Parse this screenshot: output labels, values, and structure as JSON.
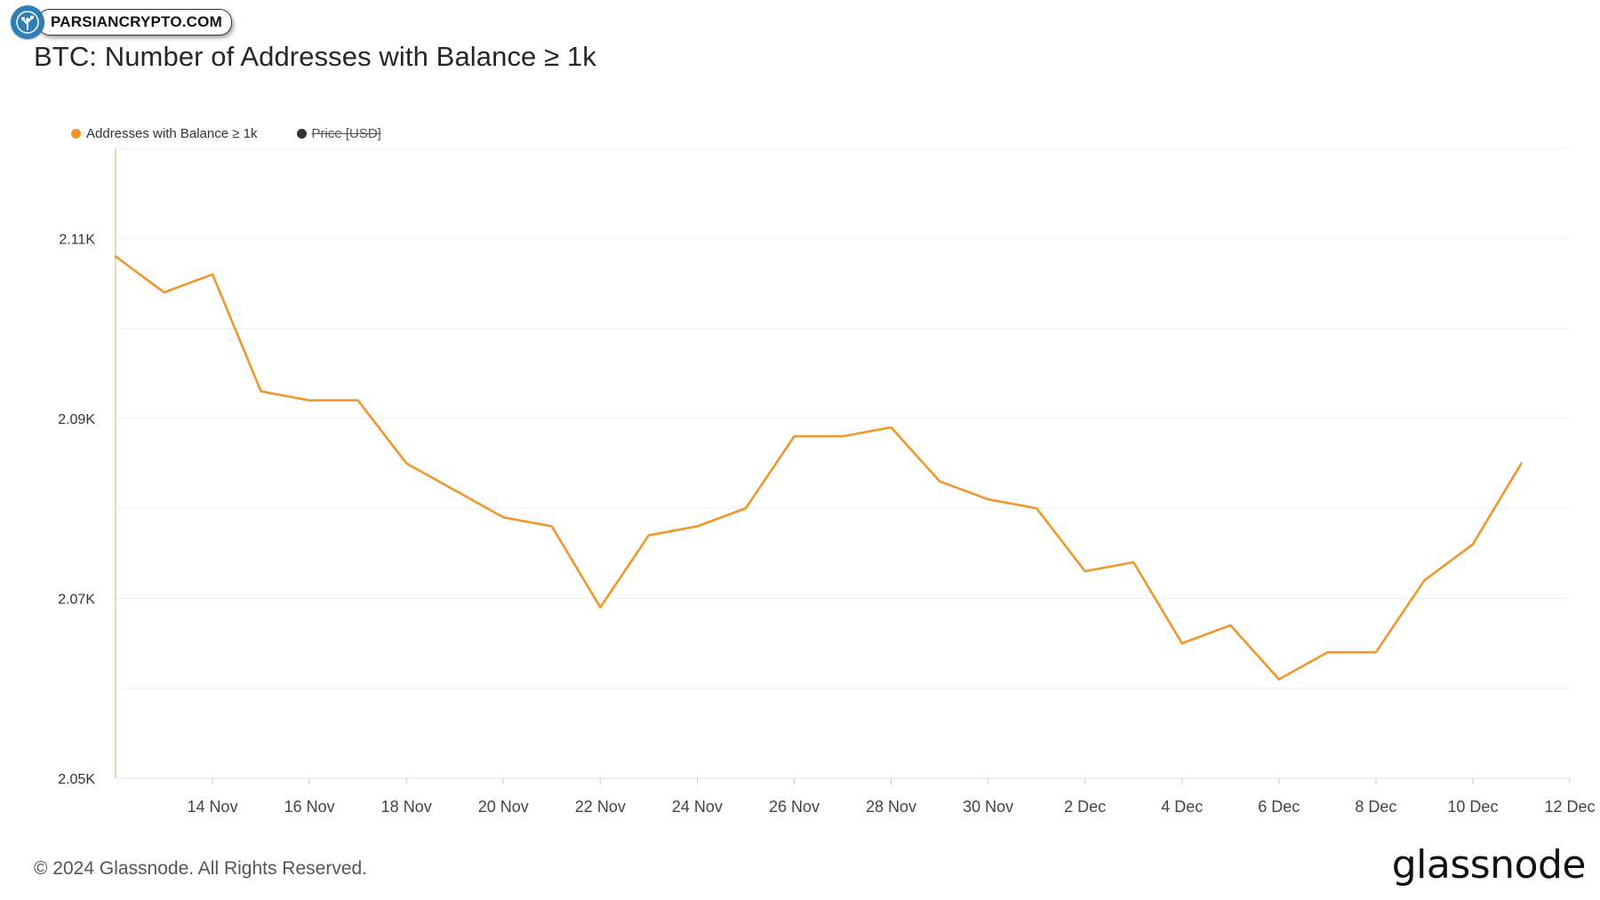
{
  "watermark": {
    "text": "PARSIANCRYPTO.COM"
  },
  "footer": {
    "copyright": "© 2024 Glassnode. All Rights Reserved.",
    "brand": "glassnode"
  },
  "colors": {
    "series": "#f0962b",
    "axis": "#f0c896",
    "grid": "#ececec",
    "price": "#333333"
  },
  "chart_data": {
    "type": "line",
    "title": "BTC: Number of Addresses with Balance ≥ 1k",
    "xlabel": "",
    "ylabel": "",
    "grid": true,
    "legend_position": "top-left",
    "legend": [
      {
        "name": "Addresses with Balance ≥ 1k",
        "color": "#f0962b",
        "enabled": true
      },
      {
        "name": "Price [USD]",
        "color": "#333333",
        "enabled": false
      }
    ],
    "ylim": [
      2050,
      2120
    ],
    "y_ticks": [
      2050,
      2070,
      2090,
      2110
    ],
    "y_tick_labels": [
      "2.05K",
      "2.07K",
      "2.09K",
      "2.11K"
    ],
    "xlim": [
      "2024-11-12",
      "2024-12-12"
    ],
    "x_ticks": [
      "2024-11-14",
      "2024-11-16",
      "2024-11-18",
      "2024-11-20",
      "2024-11-22",
      "2024-11-24",
      "2024-11-26",
      "2024-11-28",
      "2024-11-30",
      "2024-12-02",
      "2024-12-04",
      "2024-12-06",
      "2024-12-08",
      "2024-12-10",
      "2024-12-12"
    ],
    "x_tick_labels": [
      "14 Nov",
      "16 Nov",
      "18 Nov",
      "20 Nov",
      "22 Nov",
      "24 Nov",
      "26 Nov",
      "28 Nov",
      "30 Nov",
      "2 Dec",
      "4 Dec",
      "6 Dec",
      "8 Dec",
      "10 Dec",
      "12 Dec"
    ],
    "series": [
      {
        "name": "Addresses with Balance ≥ 1k",
        "x": [
          "2024-11-12",
          "2024-11-13",
          "2024-11-14",
          "2024-11-15",
          "2024-11-16",
          "2024-11-17",
          "2024-11-18",
          "2024-11-19",
          "2024-11-20",
          "2024-11-21",
          "2024-11-22",
          "2024-11-23",
          "2024-11-24",
          "2024-11-25",
          "2024-11-26",
          "2024-11-27",
          "2024-11-28",
          "2024-11-29",
          "2024-11-30",
          "2024-12-01",
          "2024-12-02",
          "2024-12-03",
          "2024-12-04",
          "2024-12-05",
          "2024-12-06",
          "2024-12-07",
          "2024-12-08",
          "2024-12-09",
          "2024-12-10",
          "2024-12-11"
        ],
        "values": [
          2108,
          2104,
          2106,
          2093,
          2092,
          2092,
          2085,
          2082,
          2079,
          2078,
          2069,
          2077,
          2078,
          2080,
          2088,
          2088,
          2089,
          2083,
          2081,
          2080,
          2073,
          2074,
          2065,
          2067,
          2061,
          2064,
          2064,
          2072,
          2076,
          2085
        ]
      }
    ]
  }
}
